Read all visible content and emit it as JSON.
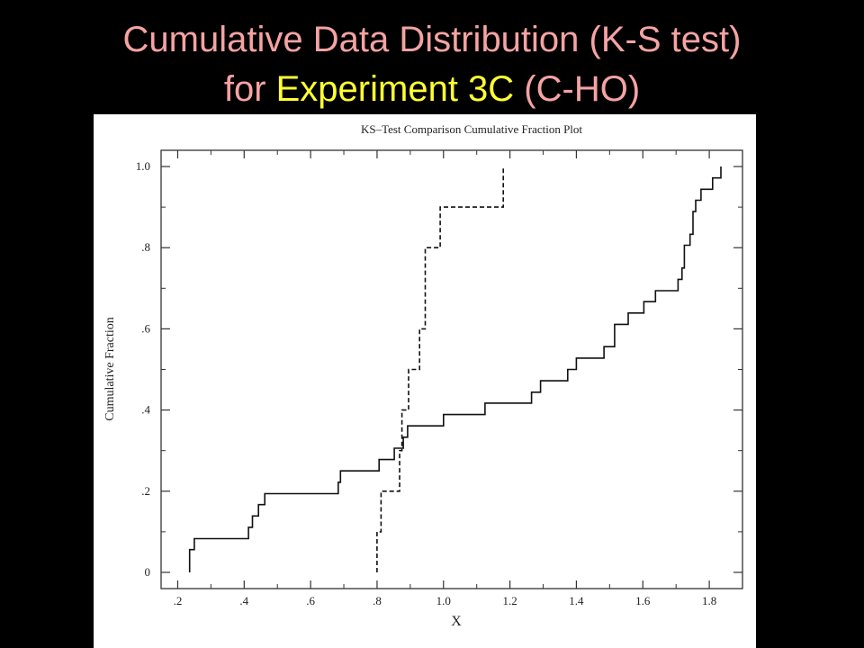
{
  "slide": {
    "title_line1": "Cumulative Data Distribution (K-S test)",
    "title_line2_prefix": "for ",
    "title_line2_highlight": "Experiment 3C",
    "title_line2_suffix": " (C-HO)",
    "colors": {
      "title": "#f5a3a3",
      "highlight": "#ffff33",
      "background": "#000000"
    }
  },
  "chart_data": {
    "type": "line",
    "title": "KS–Test Comparison Cumulative Fraction Plot",
    "xlabel": "X",
    "ylabel": "Cumulative Fraction",
    "xlim": [
      0.15,
      1.9
    ],
    "ylim": [
      -0.04,
      1.04
    ],
    "x_ticks": [
      ".2",
      ".4",
      ".6",
      ".8",
      "1.0",
      "1.2",
      "1.4",
      "1.6",
      "1.8"
    ],
    "x_tick_values": [
      0.2,
      0.4,
      0.6,
      0.8,
      1.0,
      1.2,
      1.4,
      1.6,
      1.8
    ],
    "y_ticks": [
      "0",
      ".2",
      ".4",
      ".6",
      ".8",
      "1.0"
    ],
    "y_tick_values": [
      0,
      0.2,
      0.4,
      0.6,
      0.8,
      1.0
    ],
    "grid": false,
    "series": [
      {
        "style": "solid",
        "points": [
          [
            0.236,
            0.0
          ],
          [
            0.236,
            0.056
          ],
          [
            0.25,
            0.056
          ],
          [
            0.25,
            0.083
          ],
          [
            0.413,
            0.083
          ],
          [
            0.413,
            0.111
          ],
          [
            0.425,
            0.111
          ],
          [
            0.425,
            0.139
          ],
          [
            0.443,
            0.139
          ],
          [
            0.443,
            0.167
          ],
          [
            0.462,
            0.167
          ],
          [
            0.462,
            0.194
          ],
          [
            0.683,
            0.194
          ],
          [
            0.683,
            0.222
          ],
          [
            0.69,
            0.222
          ],
          [
            0.69,
            0.25
          ],
          [
            0.806,
            0.25
          ],
          [
            0.806,
            0.278
          ],
          [
            0.852,
            0.278
          ],
          [
            0.852,
            0.306
          ],
          [
            0.879,
            0.306
          ],
          [
            0.879,
            0.333
          ],
          [
            0.892,
            0.333
          ],
          [
            0.892,
            0.361
          ],
          [
            1.0,
            0.361
          ],
          [
            1.0,
            0.389
          ],
          [
            1.125,
            0.389
          ],
          [
            1.125,
            0.417
          ],
          [
            1.265,
            0.417
          ],
          [
            1.265,
            0.444
          ],
          [
            1.292,
            0.444
          ],
          [
            1.292,
            0.472
          ],
          [
            1.374,
            0.472
          ],
          [
            1.374,
            0.5
          ],
          [
            1.4,
            0.5
          ],
          [
            1.4,
            0.528
          ],
          [
            1.483,
            0.528
          ],
          [
            1.483,
            0.556
          ],
          [
            1.515,
            0.556
          ],
          [
            1.515,
            0.611
          ],
          [
            1.556,
            0.611
          ],
          [
            1.556,
            0.639
          ],
          [
            1.603,
            0.639
          ],
          [
            1.603,
            0.667
          ],
          [
            1.638,
            0.667
          ],
          [
            1.638,
            0.694
          ],
          [
            1.706,
            0.694
          ],
          [
            1.706,
            0.722
          ],
          [
            1.718,
            0.722
          ],
          [
            1.718,
            0.75
          ],
          [
            1.725,
            0.75
          ],
          [
            1.725,
            0.806
          ],
          [
            1.742,
            0.806
          ],
          [
            1.742,
            0.833
          ],
          [
            1.751,
            0.833
          ],
          [
            1.751,
            0.889
          ],
          [
            1.759,
            0.889
          ],
          [
            1.759,
            0.917
          ],
          [
            1.775,
            0.917
          ],
          [
            1.775,
            0.944
          ],
          [
            1.81,
            0.944
          ],
          [
            1.81,
            0.972
          ],
          [
            1.835,
            0.972
          ],
          [
            1.835,
            1.0
          ]
        ]
      },
      {
        "style": "dashed",
        "points": [
          [
            0.8,
            0.0
          ],
          [
            0.8,
            0.1
          ],
          [
            0.812,
            0.1
          ],
          [
            0.812,
            0.2
          ],
          [
            0.868,
            0.2
          ],
          [
            0.868,
            0.3
          ],
          [
            0.875,
            0.3
          ],
          [
            0.875,
            0.4
          ],
          [
            0.895,
            0.4
          ],
          [
            0.895,
            0.5
          ],
          [
            0.928,
            0.5
          ],
          [
            0.928,
            0.6
          ],
          [
            0.945,
            0.6
          ],
          [
            0.945,
            0.8
          ],
          [
            0.99,
            0.8
          ],
          [
            0.99,
            0.9
          ],
          [
            1.18,
            0.9
          ],
          [
            1.18,
            1.0
          ]
        ]
      }
    ]
  }
}
